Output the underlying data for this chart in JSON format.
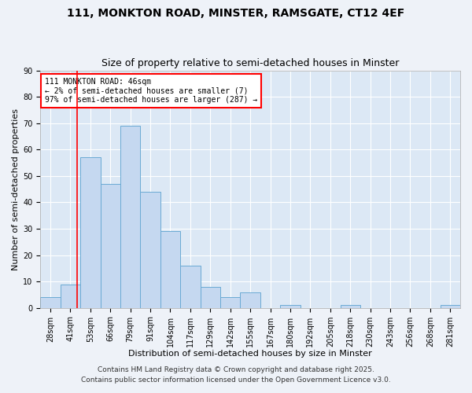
{
  "title1": "111, MONKTON ROAD, MINSTER, RAMSGATE, CT12 4EF",
  "title2": "Size of property relative to semi-detached houses in Minster",
  "xlabel": "Distribution of semi-detached houses by size in Minster",
  "ylabel": "Number of semi-detached properties",
  "categories": [
    "28sqm",
    "41sqm",
    "53sqm",
    "66sqm",
    "79sqm",
    "91sqm",
    "104sqm",
    "117sqm",
    "129sqm",
    "142sqm",
    "155sqm",
    "167sqm",
    "180sqm",
    "192sqm",
    "205sqm",
    "218sqm",
    "230sqm",
    "243sqm",
    "256sqm",
    "268sqm",
    "281sqm"
  ],
  "values": [
    4,
    9,
    57,
    47,
    69,
    44,
    29,
    16,
    8,
    4,
    6,
    0,
    1,
    0,
    0,
    1,
    0,
    0,
    0,
    0,
    1
  ],
  "bar_color": "#c5d8f0",
  "bar_edge_color": "#6aaad4",
  "background_color": "#dce8f5",
  "grid_color": "#ffffff",
  "fig_background": "#eef2f8",
  "red_line_x": 1.35,
  "annotation_text": "111 MONKTON ROAD: 46sqm\n← 2% of semi-detached houses are smaller (7)\n97% of semi-detached houses are larger (287) →",
  "footer1": "Contains HM Land Registry data © Crown copyright and database right 2025.",
  "footer2": "Contains public sector information licensed under the Open Government Licence v3.0.",
  "ylim": [
    0,
    90
  ],
  "yticks": [
    0,
    10,
    20,
    30,
    40,
    50,
    60,
    70,
    80,
    90
  ],
  "title1_fontsize": 10,
  "title2_fontsize": 9,
  "axis_label_fontsize": 8,
  "tick_fontsize": 7,
  "annotation_fontsize": 7,
  "footer_fontsize": 6.5
}
